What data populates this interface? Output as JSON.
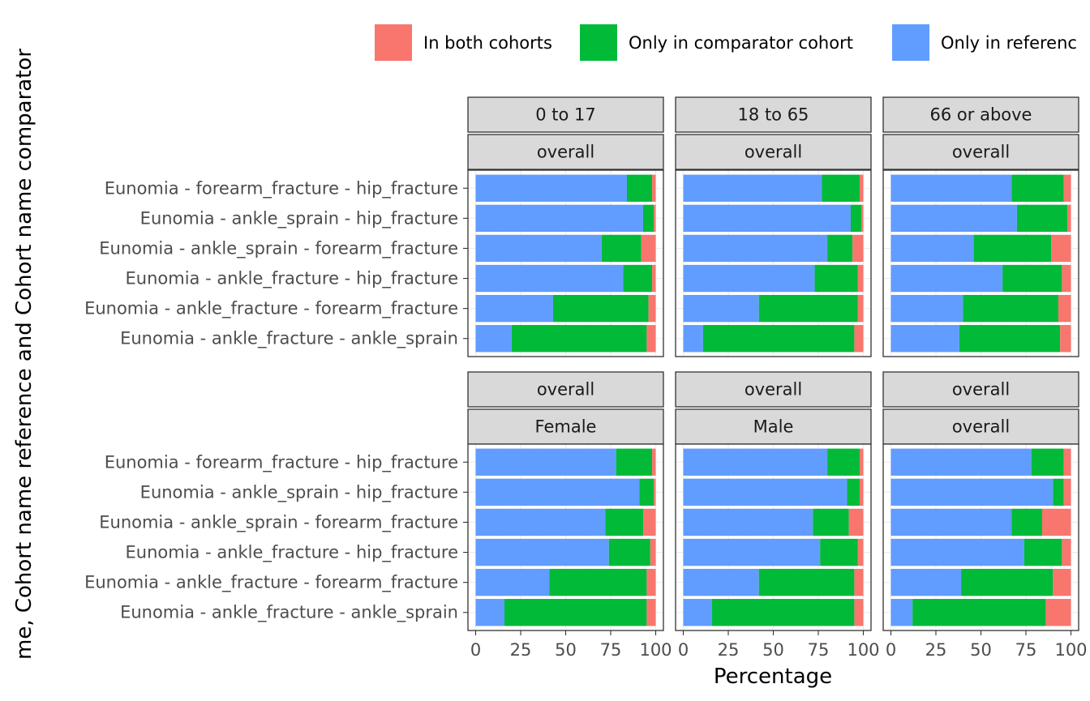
{
  "chart_data": {
    "type": "bar",
    "orientation": "horizontal",
    "stacked": true,
    "xlabel": "Percentage",
    "ylabel": "me, Cohort name reference and Cohort name comparator",
    "xlim": [
      0,
      100
    ],
    "xticks": [
      "0",
      "25",
      "50",
      "75",
      "100"
    ],
    "legend_position": "top",
    "legend": [
      {
        "name": "In both cohorts",
        "color": "#F8766D"
      },
      {
        "name": "Only in comparator cohort",
        "color": "#00BA38"
      },
      {
        "name": "Only in referenc",
        "color": "#619CFF"
      }
    ],
    "categories": [
      "Eunomia - forearm_fracture - hip_fracture",
      "Eunomia - ankle_sprain - hip_fracture",
      "Eunomia - ankle_sprain - forearm_fracture",
      "Eunomia - ankle_fracture - hip_fracture",
      "Eunomia - ankle_fracture - forearm_fracture",
      "Eunomia - ankle_fracture - ankle_sprain"
    ],
    "stack_order": [
      "Only in reference cohort",
      "Only in comparator cohort",
      "In both cohorts"
    ],
    "panels": [
      {
        "strip_top": "0 to 17",
        "strip_bottom": "overall",
        "values": [
          [
            84,
            14,
            2
          ],
          [
            93,
            6,
            1
          ],
          [
            70,
            22,
            8
          ],
          [
            82,
            16,
            2
          ],
          [
            43,
            53,
            4
          ],
          [
            20,
            75,
            5
          ]
        ]
      },
      {
        "strip_top": "18 to 65",
        "strip_bottom": "overall",
        "values": [
          [
            77,
            21,
            2
          ],
          [
            93,
            6,
            1
          ],
          [
            80,
            14,
            6
          ],
          [
            73,
            24,
            3
          ],
          [
            42,
            55,
            3
          ],
          [
            11,
            84,
            5
          ]
        ]
      },
      {
        "strip_top": "66 or above",
        "strip_bottom": "overall",
        "values": [
          [
            67,
            29,
            4
          ],
          [
            70,
            28,
            2
          ],
          [
            46,
            43,
            11
          ],
          [
            62,
            33,
            5
          ],
          [
            40,
            53,
            7
          ],
          [
            38,
            56,
            6
          ]
        ]
      },
      {
        "strip_top": "overall",
        "strip_bottom": "Female",
        "values": [
          [
            78,
            20,
            2
          ],
          [
            91,
            8,
            1
          ],
          [
            72,
            21,
            7
          ],
          [
            74,
            23,
            3
          ],
          [
            41,
            54,
            5
          ],
          [
            16,
            79,
            5
          ]
        ]
      },
      {
        "strip_top": "overall",
        "strip_bottom": "Male",
        "values": [
          [
            80,
            18,
            2
          ],
          [
            91,
            7,
            2
          ],
          [
            72,
            20,
            8
          ],
          [
            76,
            21,
            3
          ],
          [
            42,
            53,
            5
          ],
          [
            16,
            79,
            5
          ]
        ]
      },
      {
        "strip_top": "overall",
        "strip_bottom": "overall",
        "values": [
          [
            78,
            18,
            4
          ],
          [
            90,
            6,
            4
          ],
          [
            67,
            17,
            16
          ],
          [
            74,
            21,
            5
          ],
          [
            39,
            51,
            10
          ],
          [
            12,
            74,
            14
          ]
        ]
      }
    ]
  }
}
